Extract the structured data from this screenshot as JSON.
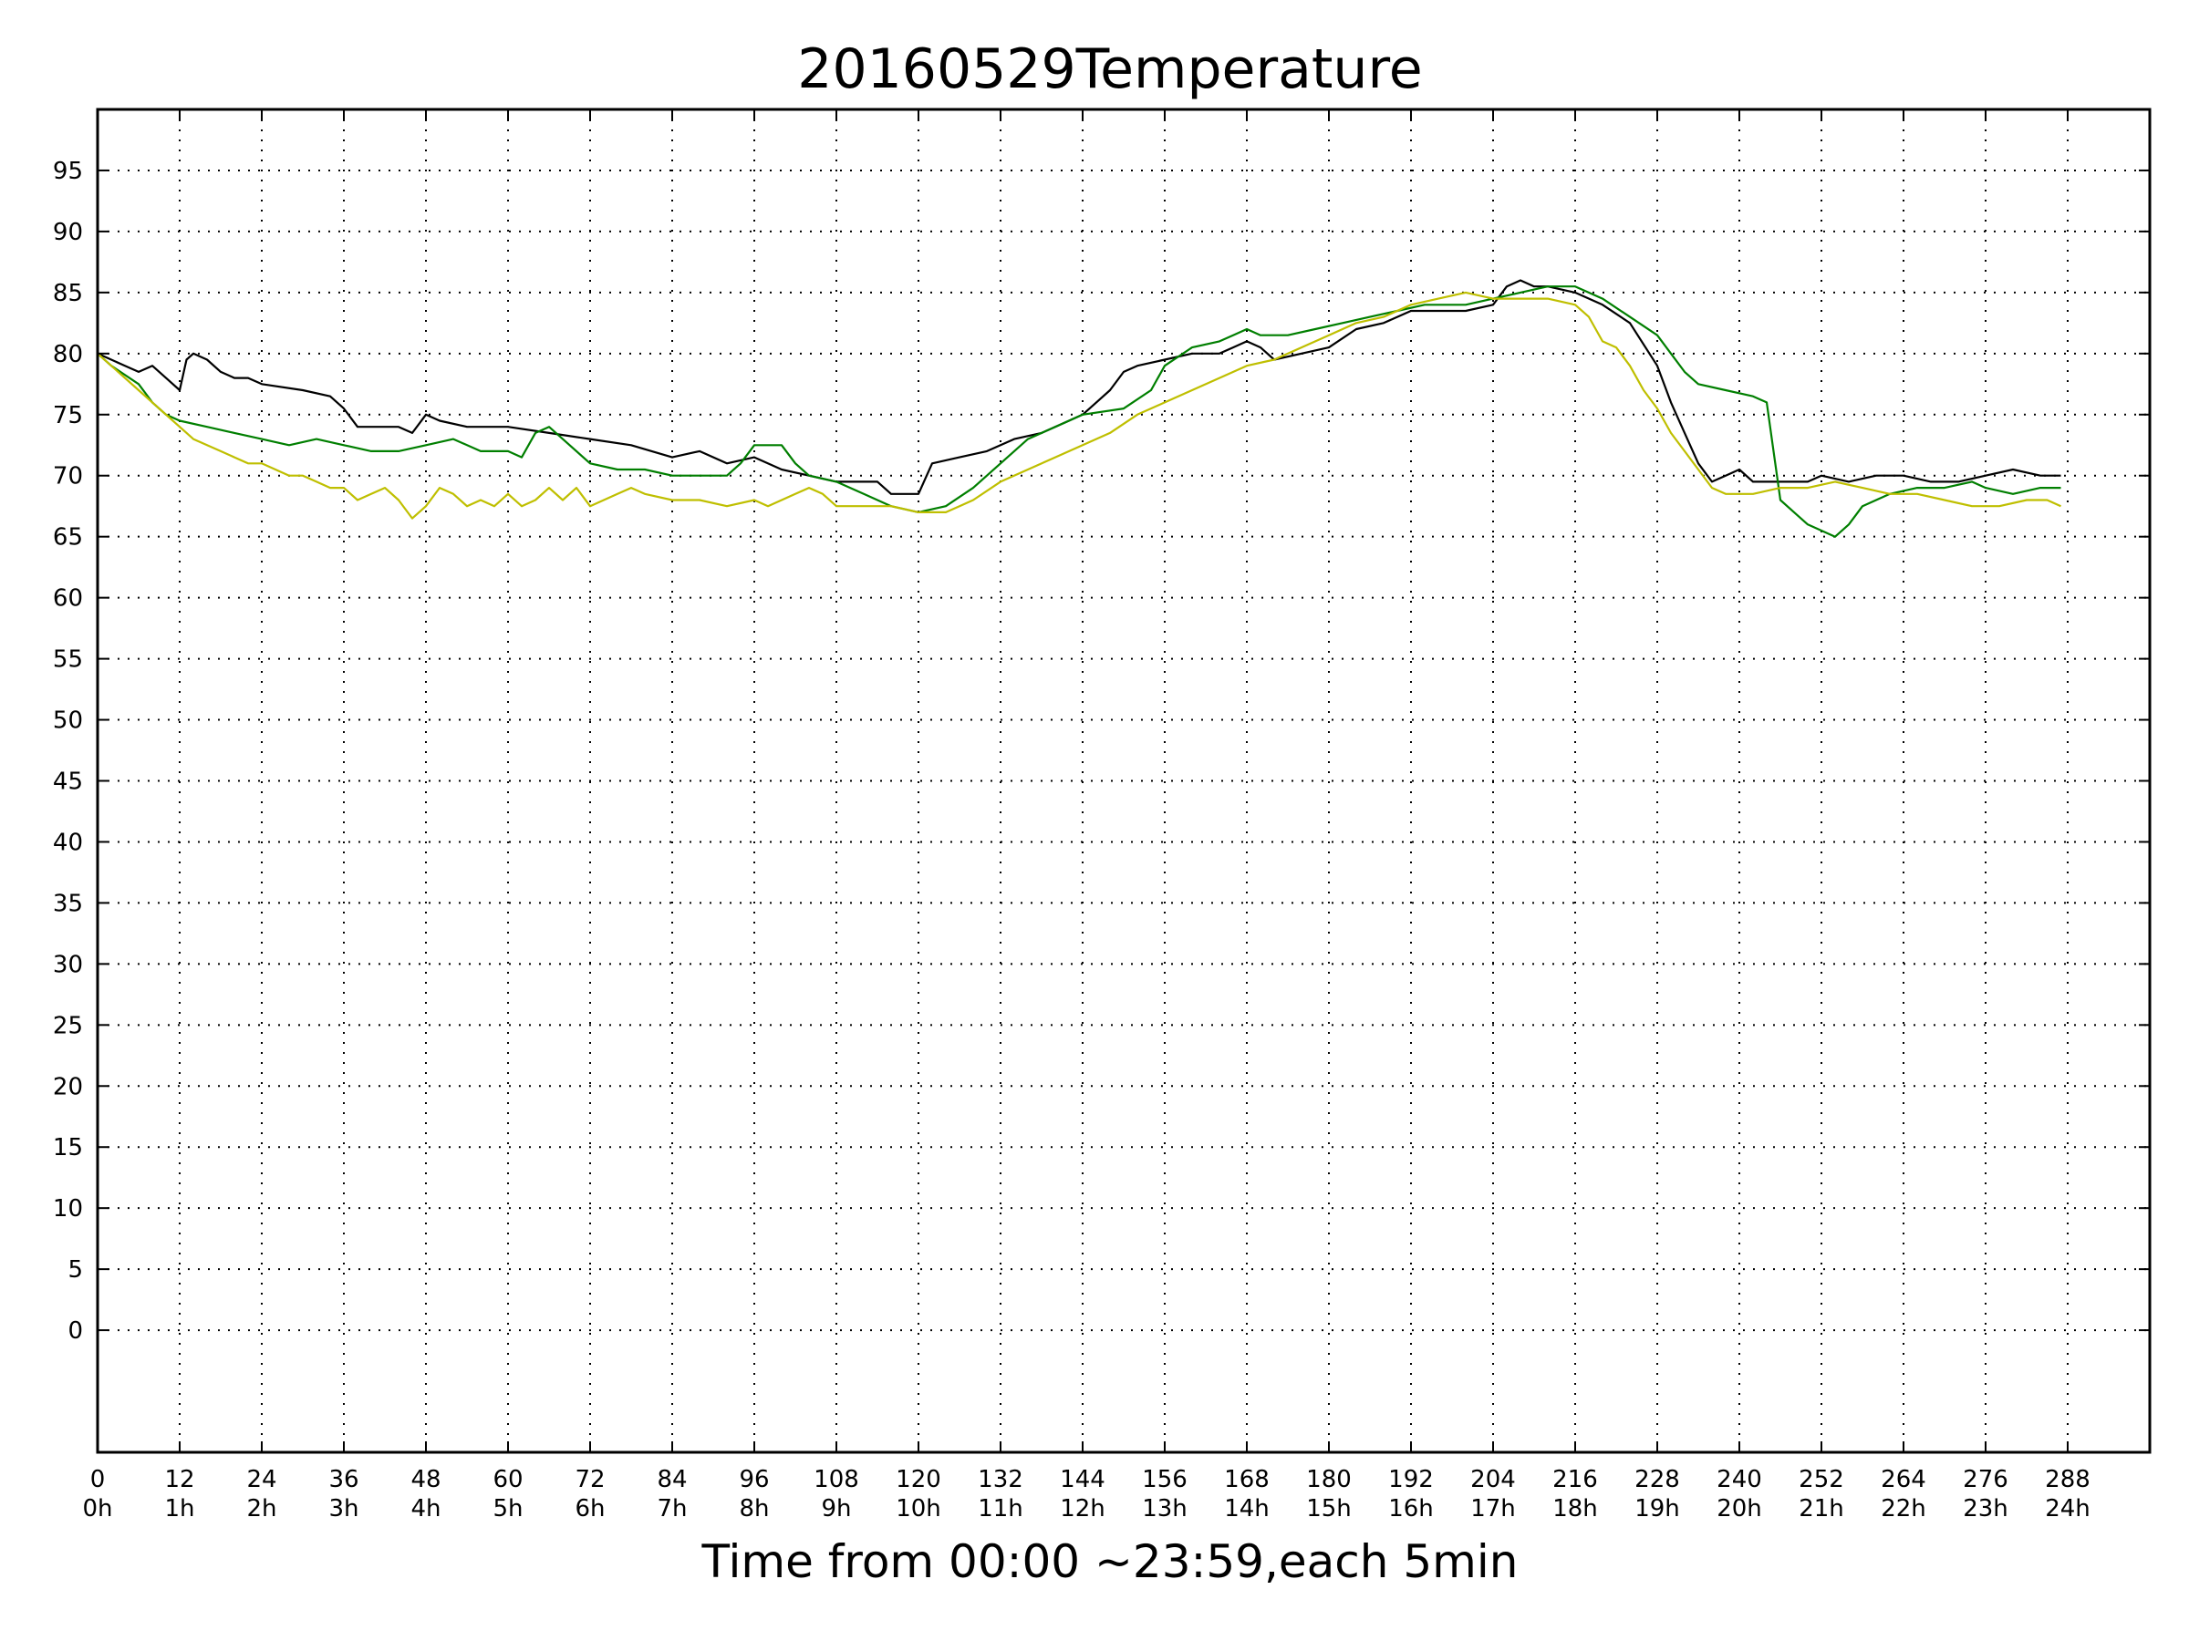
{
  "chart_data": {
    "type": "line",
    "title": "20160529Temperature",
    "xlabel": "Time from 00:00 ~23:59,each 5min",
    "ylabel": "",
    "xlim": [
      0,
      300
    ],
    "ylim": [
      -10,
      100
    ],
    "grid": true,
    "legend": "none",
    "x_ticks": [
      {
        "value": 0,
        "label": "0",
        "hour": "0h"
      },
      {
        "value": 12,
        "label": "12",
        "hour": "1h"
      },
      {
        "value": 24,
        "label": "24",
        "hour": "2h"
      },
      {
        "value": 36,
        "label": "36",
        "hour": "3h"
      },
      {
        "value": 48,
        "label": "48",
        "hour": "4h"
      },
      {
        "value": 60,
        "label": "60",
        "hour": "5h"
      },
      {
        "value": 72,
        "label": "72",
        "hour": "6h"
      },
      {
        "value": 84,
        "label": "84",
        "hour": "7h"
      },
      {
        "value": 96,
        "label": "96",
        "hour": "8h"
      },
      {
        "value": 108,
        "label": "108",
        "hour": "9h"
      },
      {
        "value": 120,
        "label": "120",
        "hour": "10h"
      },
      {
        "value": 132,
        "label": "132",
        "hour": "11h"
      },
      {
        "value": 144,
        "label": "144",
        "hour": "12h"
      },
      {
        "value": 156,
        "label": "156",
        "hour": "13h"
      },
      {
        "value": 168,
        "label": "168",
        "hour": "14h"
      },
      {
        "value": 180,
        "label": "180",
        "hour": "15h"
      },
      {
        "value": 192,
        "label": "192",
        "hour": "16h"
      },
      {
        "value": 204,
        "label": "204",
        "hour": "17h"
      },
      {
        "value": 216,
        "label": "216",
        "hour": "18h"
      },
      {
        "value": 228,
        "label": "228",
        "hour": "19h"
      },
      {
        "value": 240,
        "label": "240",
        "hour": "20h"
      },
      {
        "value": 252,
        "label": "252",
        "hour": "21h"
      },
      {
        "value": 264,
        "label": "264",
        "hour": "22h"
      },
      {
        "value": 276,
        "label": "276",
        "hour": "23h"
      },
      {
        "value": 288,
        "label": "288",
        "hour": "24h"
      }
    ],
    "y_ticks": [
      0,
      5,
      10,
      15,
      20,
      25,
      30,
      35,
      40,
      45,
      50,
      55,
      60,
      65,
      70,
      75,
      80,
      85,
      90,
      95
    ],
    "series": [
      {
        "color": "#000000",
        "points": [
          [
            0,
            80
          ],
          [
            4,
            79
          ],
          [
            6,
            78.5
          ],
          [
            8,
            79
          ],
          [
            10,
            78
          ],
          [
            12,
            77
          ],
          [
            13,
            79.5
          ],
          [
            14,
            80
          ],
          [
            16,
            79.5
          ],
          [
            18,
            78.5
          ],
          [
            20,
            78
          ],
          [
            22,
            78
          ],
          [
            24,
            77.5
          ],
          [
            30,
            77
          ],
          [
            34,
            76.5
          ],
          [
            36,
            75.5
          ],
          [
            38,
            74
          ],
          [
            42,
            74
          ],
          [
            44,
            74
          ],
          [
            46,
            73.5
          ],
          [
            48,
            75
          ],
          [
            50,
            74.5
          ],
          [
            54,
            74
          ],
          [
            60,
            74
          ],
          [
            66,
            73.5
          ],
          [
            72,
            73
          ],
          [
            78,
            72.5
          ],
          [
            84,
            71.5
          ],
          [
            88,
            72
          ],
          [
            92,
            71
          ],
          [
            96,
            71.5
          ],
          [
            100,
            70.5
          ],
          [
            104,
            70
          ],
          [
            108,
            69.5
          ],
          [
            114,
            69.5
          ],
          [
            116,
            68.5
          ],
          [
            120,
            68.5
          ],
          [
            122,
            71
          ],
          [
            126,
            71.5
          ],
          [
            130,
            72
          ],
          [
            134,
            73
          ],
          [
            138,
            73.5
          ],
          [
            142,
            74.5
          ],
          [
            144,
            75
          ],
          [
            146,
            76
          ],
          [
            148,
            77
          ],
          [
            150,
            78.5
          ],
          [
            152,
            79
          ],
          [
            156,
            79.5
          ],
          [
            160,
            80
          ],
          [
            164,
            80
          ],
          [
            166,
            80.5
          ],
          [
            168,
            81
          ],
          [
            170,
            80.5
          ],
          [
            172,
            79.5
          ],
          [
            176,
            80
          ],
          [
            180,
            80.5
          ],
          [
            184,
            82
          ],
          [
            188,
            82.5
          ],
          [
            192,
            83.5
          ],
          [
            196,
            83.5
          ],
          [
            200,
            83.5
          ],
          [
            204,
            84
          ],
          [
            206,
            85.5
          ],
          [
            208,
            86
          ],
          [
            210,
            85.5
          ],
          [
            212,
            85.5
          ],
          [
            216,
            85
          ],
          [
            220,
            84
          ],
          [
            224,
            82.5
          ],
          [
            228,
            79
          ],
          [
            230,
            76
          ],
          [
            232,
            73.5
          ],
          [
            234,
            71
          ],
          [
            236,
            69.5
          ],
          [
            238,
            70
          ],
          [
            240,
            70.5
          ],
          [
            242,
            69.5
          ],
          [
            246,
            69.5
          ],
          [
            250,
            69.5
          ],
          [
            252,
            70
          ],
          [
            256,
            69.5
          ],
          [
            260,
            70
          ],
          [
            264,
            70
          ],
          [
            268,
            69.5
          ],
          [
            272,
            69.5
          ],
          [
            276,
            70
          ],
          [
            280,
            70.5
          ],
          [
            284,
            70
          ],
          [
            287,
            70
          ]
        ]
      },
      {
        "color": "#007f00",
        "points": [
          [
            0,
            80
          ],
          [
            2,
            79
          ],
          [
            6,
            77.5
          ],
          [
            8,
            76
          ],
          [
            10,
            75
          ],
          [
            12,
            74.5
          ],
          [
            16,
            74
          ],
          [
            20,
            73.5
          ],
          [
            24,
            73
          ],
          [
            28,
            72.5
          ],
          [
            32,
            73
          ],
          [
            36,
            72.5
          ],
          [
            40,
            72
          ],
          [
            44,
            72
          ],
          [
            48,
            72.5
          ],
          [
            52,
            73
          ],
          [
            56,
            72
          ],
          [
            60,
            72
          ],
          [
            62,
            71.5
          ],
          [
            64,
            73.5
          ],
          [
            66,
            74
          ],
          [
            68,
            73
          ],
          [
            72,
            71
          ],
          [
            76,
            70.5
          ],
          [
            80,
            70.5
          ],
          [
            84,
            70
          ],
          [
            88,
            70
          ],
          [
            92,
            70
          ],
          [
            94,
            71
          ],
          [
            96,
            72.5
          ],
          [
            100,
            72.5
          ],
          [
            102,
            71
          ],
          [
            104,
            70
          ],
          [
            108,
            69.5
          ],
          [
            112,
            68.5
          ],
          [
            116,
            67.5
          ],
          [
            120,
            67
          ],
          [
            124,
            67.5
          ],
          [
            128,
            69
          ],
          [
            132,
            71
          ],
          [
            136,
            73
          ],
          [
            140,
            74
          ],
          [
            144,
            75
          ],
          [
            150,
            75.5
          ],
          [
            154,
            77
          ],
          [
            156,
            79
          ],
          [
            160,
            80.5
          ],
          [
            164,
            81
          ],
          [
            166,
            81.5
          ],
          [
            168,
            82
          ],
          [
            170,
            81.5
          ],
          [
            174,
            81.5
          ],
          [
            178,
            82
          ],
          [
            182,
            82.5
          ],
          [
            186,
            83
          ],
          [
            190,
            83.5
          ],
          [
            194,
            84
          ],
          [
            200,
            84
          ],
          [
            204,
            84.5
          ],
          [
            208,
            85
          ],
          [
            212,
            85.5
          ],
          [
            216,
            85.5
          ],
          [
            220,
            84.5
          ],
          [
            224,
            83
          ],
          [
            228,
            81.5
          ],
          [
            230,
            80
          ],
          [
            232,
            78.5
          ],
          [
            234,
            77.5
          ],
          [
            238,
            77
          ],
          [
            242,
            76.5
          ],
          [
            244,
            76
          ],
          [
            246,
            68
          ],
          [
            248,
            67
          ],
          [
            250,
            66
          ],
          [
            252,
            65.5
          ],
          [
            254,
            65
          ],
          [
            256,
            66
          ],
          [
            258,
            67.5
          ],
          [
            262,
            68.5
          ],
          [
            266,
            69
          ],
          [
            270,
            69
          ],
          [
            274,
            69.5
          ],
          [
            276,
            69
          ],
          [
            280,
            68.5
          ],
          [
            284,
            69
          ],
          [
            287,
            69
          ]
        ]
      },
      {
        "color": "#bfbf00",
        "points": [
          [
            0,
            80
          ],
          [
            3,
            78.5
          ],
          [
            6,
            77
          ],
          [
            8,
            76
          ],
          [
            10,
            75
          ],
          [
            12,
            74
          ],
          [
            14,
            73
          ],
          [
            16,
            72.5
          ],
          [
            18,
            72
          ],
          [
            20,
            71.5
          ],
          [
            22,
            71
          ],
          [
            24,
            71
          ],
          [
            26,
            70.5
          ],
          [
            28,
            70
          ],
          [
            30,
            70
          ],
          [
            32,
            69.5
          ],
          [
            34,
            69
          ],
          [
            36,
            69
          ],
          [
            38,
            68
          ],
          [
            40,
            68.5
          ],
          [
            42,
            69
          ],
          [
            44,
            68
          ],
          [
            46,
            66.5
          ],
          [
            48,
            67.5
          ],
          [
            50,
            69
          ],
          [
            52,
            68.5
          ],
          [
            54,
            67.5
          ],
          [
            56,
            68
          ],
          [
            58,
            67.5
          ],
          [
            60,
            68.5
          ],
          [
            62,
            67.5
          ],
          [
            64,
            68
          ],
          [
            66,
            69
          ],
          [
            68,
            68
          ],
          [
            70,
            69
          ],
          [
            72,
            67.5
          ],
          [
            74,
            68
          ],
          [
            76,
            68.5
          ],
          [
            78,
            69
          ],
          [
            80,
            68.5
          ],
          [
            84,
            68
          ],
          [
            88,
            68
          ],
          [
            92,
            67.5
          ],
          [
            96,
            68
          ],
          [
            98,
            67.5
          ],
          [
            100,
            68
          ],
          [
            102,
            68.5
          ],
          [
            104,
            69
          ],
          [
            106,
            68.5
          ],
          [
            108,
            67.5
          ],
          [
            112,
            67.5
          ],
          [
            116,
            67.5
          ],
          [
            120,
            67
          ],
          [
            124,
            67
          ],
          [
            126,
            67.5
          ],
          [
            128,
            68
          ],
          [
            132,
            69.5
          ],
          [
            136,
            70.5
          ],
          [
            140,
            71.5
          ],
          [
            144,
            72.5
          ],
          [
            148,
            73.5
          ],
          [
            152,
            75
          ],
          [
            156,
            76
          ],
          [
            160,
            77
          ],
          [
            164,
            78
          ],
          [
            168,
            79
          ],
          [
            172,
            79.5
          ],
          [
            176,
            80.5
          ],
          [
            180,
            81.5
          ],
          [
            184,
            82.5
          ],
          [
            188,
            83
          ],
          [
            192,
            84
          ],
          [
            196,
            84.5
          ],
          [
            200,
            85
          ],
          [
            204,
            84.5
          ],
          [
            208,
            84.5
          ],
          [
            212,
            84.5
          ],
          [
            216,
            84
          ],
          [
            218,
            83
          ],
          [
            220,
            81
          ],
          [
            222,
            80.5
          ],
          [
            224,
            79
          ],
          [
            226,
            77
          ],
          [
            228,
            75.5
          ],
          [
            230,
            73.5
          ],
          [
            232,
            72
          ],
          [
            234,
            70.5
          ],
          [
            236,
            69
          ],
          [
            238,
            68.5
          ],
          [
            242,
            68.5
          ],
          [
            246,
            69
          ],
          [
            250,
            69
          ],
          [
            254,
            69.5
          ],
          [
            258,
            69
          ],
          [
            262,
            68.5
          ],
          [
            266,
            68.5
          ],
          [
            270,
            68
          ],
          [
            274,
            67.5
          ],
          [
            278,
            67.5
          ],
          [
            282,
            68
          ],
          [
            285,
            68
          ],
          [
            287,
            67.5
          ]
        ]
      }
    ]
  }
}
